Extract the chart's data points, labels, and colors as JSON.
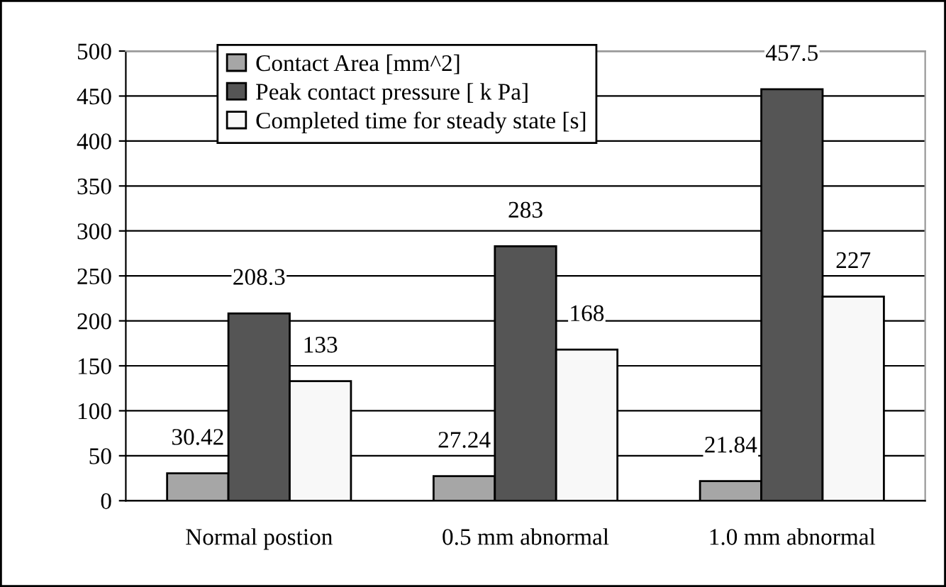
{
  "chart_data": {
    "type": "bar",
    "categories": [
      "Normal postion",
      "0.5 mm abnormal",
      "1.0 mm abnormal"
    ],
    "series": [
      {
        "name": "Contact Area [mm^2]",
        "color": "#a6a6a6",
        "values": [
          30.42,
          27.24,
          21.84
        ]
      },
      {
        "name": "Peak contact pressure [ k Pa]",
        "color": "#555555",
        "values": [
          208.3,
          283,
          457.5
        ]
      },
      {
        "name": "Completed time for steady state [s]",
        "color": "#f8f8f8",
        "values": [
          133,
          168,
          227
        ]
      }
    ],
    "ylim": [
      0,
      500
    ],
    "yticks": [
      0,
      50,
      100,
      150,
      200,
      250,
      300,
      350,
      400,
      450,
      500
    ],
    "grid": "y",
    "legend": "top",
    "data_labels": true
  }
}
